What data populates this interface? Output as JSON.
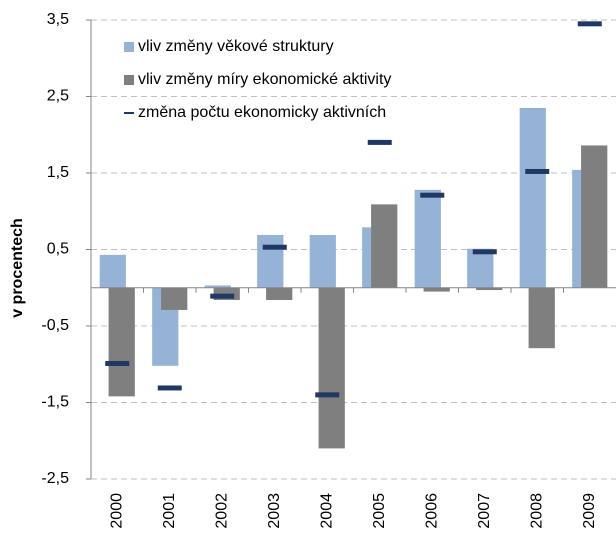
{
  "chart_data": {
    "type": "bar",
    "y_label": "v procentech",
    "categories": [
      "2000",
      "2001",
      "2002",
      "2003",
      "2004",
      "2005",
      "2006",
      "2007",
      "2008",
      "2009"
    ],
    "series": [
      {
        "name": "vliv změny věkové struktury",
        "color": "#95b3d7",
        "style": "bar",
        "values": [
          0.43,
          -1.02,
          0.03,
          0.69,
          0.69,
          0.79,
          1.28,
          0.51,
          2.35,
          1.54
        ]
      },
      {
        "name": "vliv změny míry ekonomické aktivity",
        "color": "#7f7f7f",
        "style": "bar",
        "values": [
          -1.42,
          -0.29,
          -0.16,
          -0.16,
          -2.1,
          1.09,
          -0.05,
          -0.03,
          -0.79,
          1.86
        ]
      },
      {
        "name": "změna počtu ekonomicky aktivních",
        "color": "#1f3864",
        "style": "dash",
        "values": [
          -0.99,
          -1.31,
          -0.11,
          0.53,
          -1.4,
          1.9,
          1.21,
          0.47,
          1.52,
          3.45
        ]
      }
    ],
    "ylim": [
      -2.5,
      3.5
    ],
    "yticks": [
      {
        "value": -2.5,
        "label": "-2,5"
      },
      {
        "value": -1.5,
        "label": "-1,5"
      },
      {
        "value": -0.5,
        "label": "-0,5"
      },
      {
        "value": 0.5,
        "label": "0,5"
      },
      {
        "value": 1.5,
        "label": "1,5"
      },
      {
        "value": 2.5,
        "label": "2,5"
      },
      {
        "value": 3.5,
        "label": "3,5"
      }
    ],
    "grid": true
  }
}
